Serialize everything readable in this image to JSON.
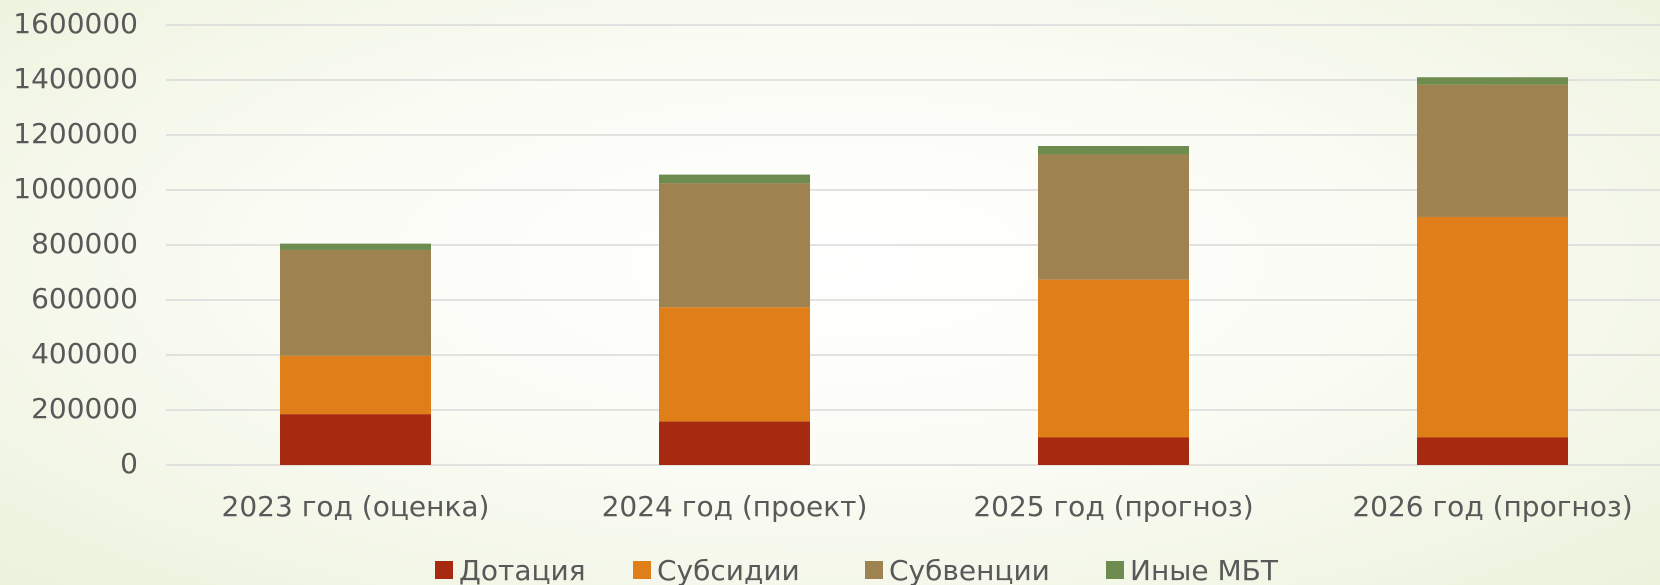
{
  "chart_data": {
    "type": "stacked_bar",
    "categories": [
      "2023 год (оценка)",
      "2024 год (проект)",
      "2025 год (прогноз)",
      "2026 год (прогноз)"
    ],
    "series": [
      {
        "name": "Дотация",
        "color": "#a52a10",
        "values": [
          185000,
          158000,
          100000,
          100000
        ]
      },
      {
        "name": "Субсидии",
        "color": "#e07e1a",
        "values": [
          212000,
          416000,
          574000,
          802000
        ]
      },
      {
        "name": "Субвенции",
        "color": "#9e8350",
        "values": [
          385000,
          451000,
          455000,
          481000
        ]
      },
      {
        "name": "Иные МБТ",
        "color": "#6e8c50",
        "values": [
          23000,
          31000,
          31000,
          27000
        ]
      }
    ],
    "ylim": [
      0,
      1600000
    ],
    "yticks": [
      0,
      200000,
      400000,
      600000,
      800000,
      1000000,
      1200000,
      1400000,
      1600000
    ],
    "grid": true,
    "legend": "bottom"
  }
}
